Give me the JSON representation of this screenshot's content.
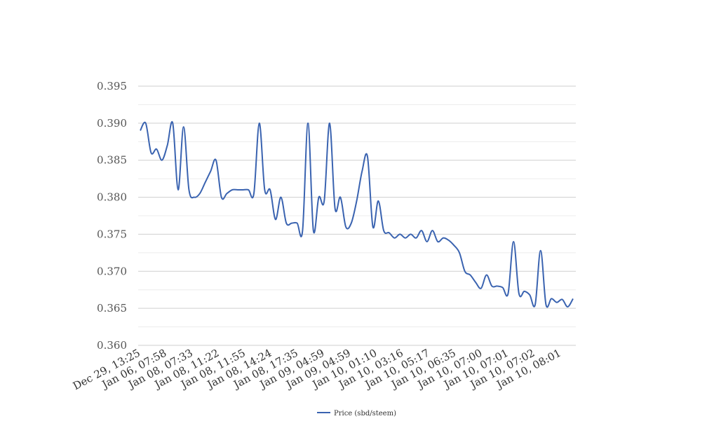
{
  "chart_data": {
    "type": "line",
    "title": "",
    "xlabel": "",
    "ylabel": "",
    "ylim": [
      0.36,
      0.395
    ],
    "yticks": [
      "0.360",
      "0.365",
      "0.370",
      "0.375",
      "0.380",
      "0.385",
      "0.390",
      "0.395"
    ],
    "x_tick_labels": [
      "Dec 29, 13:25",
      "Jan 06, 07:58",
      "Jan 08, 07:33",
      "Jan 08, 11:22",
      "Jan 08, 11:55",
      "Jan 08, 14:24",
      "Jan 08, 17:35",
      "Jan 09, 04:59",
      "Jan 09, 04:59",
      "Jan 10, 01:10",
      "Jan 10, 03:16",
      "Jan 10, 05:17",
      "Jan 10, 06:35",
      "Jan 10, 07:00",
      "Jan 10, 07:01",
      "Jan 10, 07:02",
      "Jan 10, 08:01"
    ],
    "grid": true,
    "legend_position": "bottom",
    "series": [
      {
        "name": "Price (sbd/steem)",
        "color": "#3a63b0",
        "values": [
          0.389,
          0.39,
          0.386,
          0.3865,
          0.385,
          0.387,
          0.39,
          0.381,
          0.3895,
          0.381,
          0.38,
          0.3805,
          0.382,
          0.3835,
          0.385,
          0.38,
          0.3805,
          0.381,
          0.381,
          0.381,
          0.381,
          0.3805,
          0.39,
          0.381,
          0.381,
          0.377,
          0.38,
          0.3765,
          0.3765,
          0.3765,
          0.3755,
          0.39,
          0.3755,
          0.38,
          0.3795,
          0.39,
          0.3785,
          0.38,
          0.376,
          0.3765,
          0.3795,
          0.3835,
          0.3855,
          0.376,
          0.3795,
          0.3755,
          0.3752,
          0.3745,
          0.375,
          0.3745,
          0.375,
          0.3745,
          0.3755,
          0.374,
          0.3755,
          0.374,
          0.3745,
          0.3742,
          0.3735,
          0.3725,
          0.37,
          0.3695,
          0.3685,
          0.3677,
          0.3695,
          0.368,
          0.368,
          0.3678,
          0.367,
          0.374,
          0.367,
          0.3673,
          0.3668,
          0.3655,
          0.3728,
          0.3655,
          0.3663,
          0.3658,
          0.3662,
          0.3652,
          0.3663
        ]
      }
    ]
  }
}
